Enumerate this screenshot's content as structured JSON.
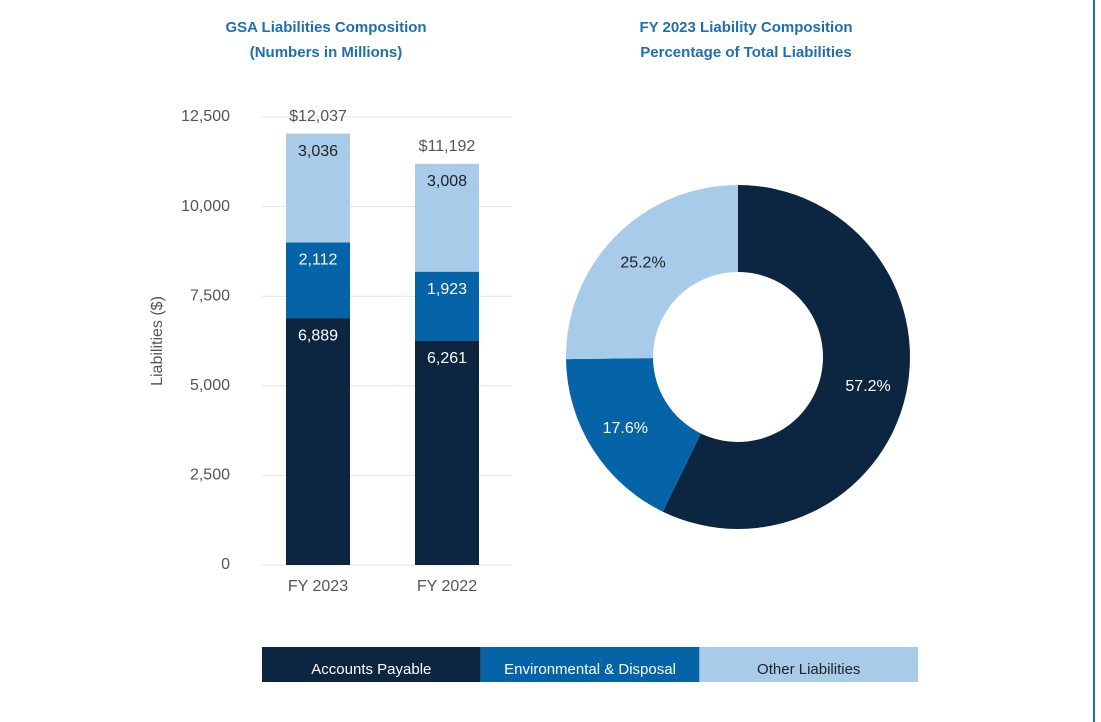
{
  "chart_data": [
    {
      "type": "stacked-bar",
      "title": "GSA Liabilities Composition",
      "subtitle": "(Numbers in Millions)",
      "y_label": "Liabilities  ($)",
      "categories": [
        "FY 2023",
        "FY 2022"
      ],
      "series": [
        {
          "name": "Accounts Payable",
          "color": "#0c2541",
          "values": [
            6889,
            6261
          ],
          "value_labels": [
            "6,889",
            "6,261"
          ]
        },
        {
          "name": "Environmental & Disposal",
          "color": "#0563a8",
          "values": [
            2112,
            1923
          ],
          "value_labels": [
            "2,112",
            "1,923"
          ]
        },
        {
          "name": "Other Liabilities",
          "color": "#a9cbea",
          "values": [
            3036,
            3008
          ],
          "value_labels": [
            "3,036",
            "3,008"
          ]
        }
      ],
      "totals": [
        12037,
        11192
      ],
      "total_labels": [
        "$12,037",
        "$11,192"
      ],
      "ylim": [
        0,
        12500
      ],
      "yticks": [
        0,
        {
          "value": 2500,
          "label": "2,500"
        },
        {
          "value": 5000,
          "label": "5,000"
        },
        {
          "value": 7500,
          "label": "7,500"
        },
        {
          "value": 10000,
          "label": "10,000"
        },
        {
          "value": 12500,
          "label": "12,500"
        }
      ],
      "grid": true
    },
    {
      "type": "donut",
      "title": "FY 2023 Liability Composition",
      "subtitle": "Percentage of Total Liabilities",
      "values": [
        57.2,
        17.6,
        25.2
      ],
      "value_labels": [
        "57.2%",
        "17.6%",
        "25.2%"
      ],
      "colors": [
        "#0c2541",
        "#0563a8",
        "#a9cbea"
      ]
    }
  ]
}
